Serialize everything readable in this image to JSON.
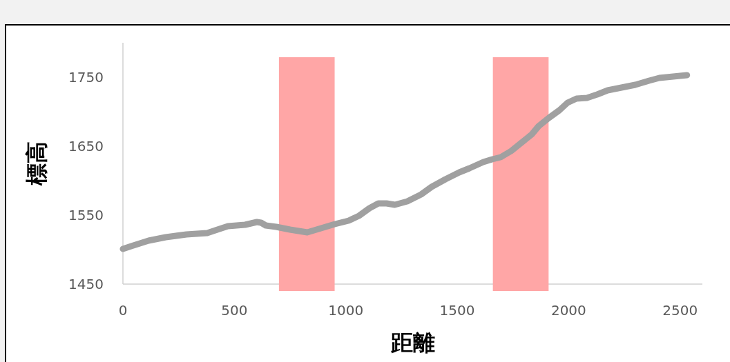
{
  "chart_data": {
    "type": "line",
    "xlabel": "距離",
    "ylabel": "標高",
    "x": [
      0,
      37,
      115,
      192,
      285,
      378,
      424,
      471,
      548,
      601,
      620,
      641,
      688,
      750,
      827,
      889,
      951,
      1013,
      1059,
      1106,
      1146,
      1183,
      1220,
      1276,
      1338,
      1385,
      1447,
      1509,
      1555,
      1617,
      1657,
      1695,
      1742,
      1788,
      1834,
      1865,
      1911,
      1958,
      1995,
      2035,
      2082,
      2128,
      2175,
      2237,
      2299,
      2361,
      2407,
      2531
    ],
    "series": [
      {
        "color": "#a0a0a0",
        "values": [
          1501,
          1505,
          1513,
          1518,
          1522,
          1524,
          1529,
          1534,
          1536,
          1540,
          1539,
          1535,
          1533,
          1529,
          1525,
          1531,
          1537,
          1542,
          1549,
          1560,
          1567,
          1567,
          1565,
          1570,
          1580,
          1591,
          1602,
          1612,
          1618,
          1627,
          1631,
          1634,
          1643,
          1655,
          1667,
          1679,
          1691,
          1702,
          1713,
          1719,
          1720,
          1725,
          1731,
          1735,
          1739,
          1745,
          1749,
          1753
        ]
      }
    ],
    "xlim": [
      0,
      2600
    ],
    "ylim": [
      1450,
      1800
    ],
    "xticks": [
      0,
      500,
      1000,
      1500,
      2000,
      2500
    ],
    "yticks": [
      1450,
      1550,
      1650,
      1750
    ],
    "bands": [
      {
        "axis": "x",
        "from": 700,
        "to": 950,
        "color": "#ffa6a6"
      },
      {
        "axis": "x",
        "from": 1660,
        "to": 1910,
        "color": "#ffa6a6"
      }
    ],
    "grid": false,
    "marker": "none",
    "line_style": "solid"
  }
}
